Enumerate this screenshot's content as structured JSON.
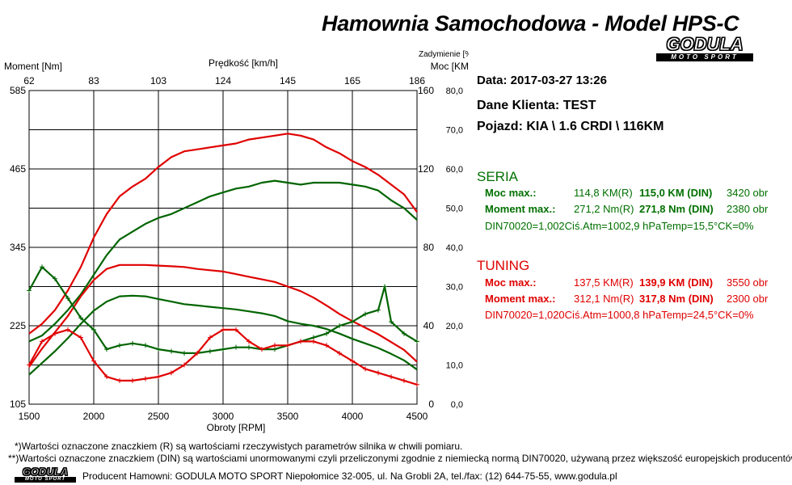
{
  "title": "Hamownia Samochodowa   -   Model HPS-C",
  "logo": {
    "main": "GODULA",
    "sub": "MOTO SPORT"
  },
  "chart_data": {
    "type": "line",
    "x": {
      "label": "Obroty [RPM]",
      "min": 1500,
      "max": 4500,
      "ticks": [
        "1500",
        "2000",
        "2500",
        "3000",
        "3500",
        "4000",
        "4500"
      ]
    },
    "x_top": {
      "label": "Prędkość [km/h]",
      "ticks": [
        "62",
        "83",
        "103",
        "124",
        "145",
        "165",
        "186"
      ]
    },
    "y_left": {
      "label": "Moment [Nm]",
      "min": 105,
      "max": 585,
      "ticks": [
        "585",
        "465",
        "345",
        "225",
        "105"
      ]
    },
    "y_mid": {
      "label": "Moc [KM]",
      "min": 0,
      "max": 160,
      "ticks": [
        "160",
        "120",
        "80",
        "40",
        "0"
      ]
    },
    "y_right": {
      "label": "Zadymienie [%]",
      "min": 0,
      "max": 80,
      "ticks": [
        "80,0",
        "70,0",
        "60,0",
        "50,0",
        "40,0",
        "30,0",
        "20,0",
        "10,0",
        "0,0"
      ]
    },
    "grid": true,
    "series": [
      {
        "name": "TUNING",
        "kind": "moc",
        "axis": "y_mid",
        "color": "#e00000",
        "x": [
          1500,
          1600,
          1700,
          1800,
          1900,
          2000,
          2100,
          2200,
          2300,
          2400,
          2500,
          2600,
          2700,
          2800,
          2900,
          3000,
          3100,
          3200,
          3300,
          3400,
          3500,
          3600,
          3700,
          3800,
          3900,
          4000,
          4100,
          4200,
          4300,
          4400,
          4500
        ],
        "y": [
          36,
          41,
          48,
          58,
          70,
          85,
          97,
          106,
          111,
          115,
          121,
          126,
          129,
          130,
          131,
          132,
          133,
          135,
          136,
          137,
          138,
          137,
          135,
          131,
          128,
          124,
          121,
          117,
          112,
          107,
          98
        ]
      },
      {
        "name": "SERIA",
        "kind": "moc",
        "axis": "y_mid",
        "color": "#006400",
        "x": [
          1500,
          1600,
          1700,
          1800,
          1900,
          2000,
          2100,
          2200,
          2300,
          2400,
          2500,
          2600,
          2700,
          2800,
          2900,
          3000,
          3100,
          3200,
          3300,
          3400,
          3500,
          3600,
          3700,
          3800,
          3900,
          4000,
          4100,
          4200,
          4300,
          4400,
          4500
        ],
        "y": [
          32,
          35,
          41,
          48,
          56,
          66,
          76,
          84,
          88,
          92,
          95,
          97,
          100,
          103,
          106,
          108,
          110,
          111,
          113,
          114,
          113,
          112,
          113,
          113,
          113,
          112,
          111,
          109,
          104,
          100,
          94
        ]
      },
      {
        "name": "TUNING",
        "kind": "moment",
        "axis": "y_left",
        "color": "#e00000",
        "x": [
          1500,
          1600,
          1700,
          1800,
          1900,
          2000,
          2100,
          2200,
          2300,
          2400,
          2500,
          2600,
          2700,
          2800,
          2900,
          3000,
          3100,
          3200,
          3300,
          3400,
          3500,
          3600,
          3700,
          3800,
          3900,
          4000,
          4100,
          4200,
          4300,
          4400,
          4500
        ],
        "y": [
          162,
          190,
          215,
          240,
          270,
          295,
          312,
          318,
          318,
          318,
          317,
          316,
          315,
          312,
          310,
          308,
          304,
          300,
          296,
          292,
          285,
          278,
          268,
          256,
          243,
          232,
          222,
          212,
          200,
          188,
          170
        ]
      },
      {
        "name": "SERIA",
        "kind": "moment",
        "axis": "y_left",
        "color": "#006400",
        "x": [
          1500,
          1600,
          1700,
          1800,
          1900,
          2000,
          2100,
          2200,
          2300,
          2400,
          2500,
          2600,
          2700,
          2800,
          2900,
          3000,
          3100,
          3200,
          3300,
          3400,
          3500,
          3600,
          3700,
          3800,
          3900,
          4000,
          4100,
          4200,
          4300,
          4400,
          4500
        ],
        "y": [
          150,
          168,
          186,
          206,
          228,
          248,
          262,
          270,
          271,
          270,
          266,
          262,
          258,
          256,
          254,
          252,
          250,
          247,
          244,
          240,
          232,
          228,
          225,
          220,
          213,
          205,
          198,
          191,
          182,
          172,
          158
        ]
      },
      {
        "name": "SERIA",
        "kind": "zadymienie",
        "axis": "y_right",
        "color": "#006400",
        "marker": "+",
        "x": [
          1500,
          1600,
          1700,
          1800,
          1900,
          2000,
          2100,
          2200,
          2300,
          2400,
          2500,
          2600,
          2700,
          2800,
          2900,
          3000,
          3100,
          3200,
          3300,
          3400,
          3500,
          3600,
          3700,
          3800,
          3900,
          4000,
          4100,
          4200,
          4250,
          4300,
          4400,
          4500
        ],
        "y": [
          29,
          35,
          32,
          27,
          22,
          19,
          14,
          15,
          15.5,
          15,
          14,
          13.5,
          13,
          13,
          13.5,
          14,
          14.5,
          14.5,
          14,
          14,
          15,
          16,
          17,
          18,
          20,
          21,
          23,
          24,
          30,
          21,
          18,
          16
        ]
      },
      {
        "name": "TUNING",
        "kind": "zadymienie",
        "axis": "y_right",
        "color": "#e00000",
        "marker": "+",
        "x": [
          1500,
          1600,
          1700,
          1800,
          1900,
          2000,
          2100,
          2200,
          2300,
          2400,
          2500,
          2600,
          2700,
          2800,
          2900,
          3000,
          3100,
          3200,
          3300,
          3400,
          3500,
          3600,
          3700,
          3800,
          3900,
          4000,
          4100,
          4200,
          4300,
          4400,
          4500
        ],
        "y": [
          10,
          16,
          18,
          19,
          17,
          11,
          7,
          6,
          6,
          6.5,
          7,
          8,
          10,
          13,
          17,
          19,
          19,
          16,
          14,
          15,
          15,
          16,
          16,
          15,
          13,
          11,
          9,
          8,
          7,
          6,
          5
        ]
      }
    ]
  },
  "info": {
    "date": "Data: 2017-03-27  13:26",
    "client": "Dane Klienta: TEST",
    "vehicle": "Pojazd: KIA \\ 1.6 CRDI \\ 116KM"
  },
  "seria": {
    "title": "SERIA",
    "moc_label": "Moc max.:",
    "moc_r": "114,8 KM(R)",
    "moc_din": "115,0 KM (DIN)",
    "moc_rpm": "3420 obr",
    "moment_label": "Moment max.:",
    "moment_r": "271,2 Nm(R)",
    "moment_din": "271,8 Nm (DIN)",
    "moment_rpm": "2380 obr",
    "atm": "DIN70020=1,002Ciś.Atm=1002,9 hPaTemp=15,5°CK=0%"
  },
  "tuning": {
    "title": "TUNING",
    "moc_label": "Moc max.:",
    "moc_r": "137,5 KM(R)",
    "moc_din": "139,9 KM (DIN)",
    "moc_rpm": "3550 obr",
    "moment_label": "Moment max.:",
    "moment_r": "312,1 Nm(R)",
    "moment_din": "317,8 Nm (DIN)",
    "moment_rpm": "2300 obr",
    "atm": "DIN70020=1,020Ciś.Atm=1000,8 hPaTemp=24,5°CK=0%"
  },
  "footnotes": {
    "note1": "*)Wartości oznaczone znaczkiem (R) są wartościami rzeczywistych parametrów silnika w chwili pomiaru.",
    "note2": "**)Wartości oznaczone znaczkiem (DIN) są wartościami unormowanymi czyli przeliczonymi zgodnie z niemiecką normą DIN70020, używaną przez większość europejskich producentów",
    "producer": "Producent Hamowni: GODULA MOTO SPORT Niepołomice 32-005, ul. Na Grobli 2A, tel./fax: (12) 644-75-55, www.godula.pl"
  }
}
